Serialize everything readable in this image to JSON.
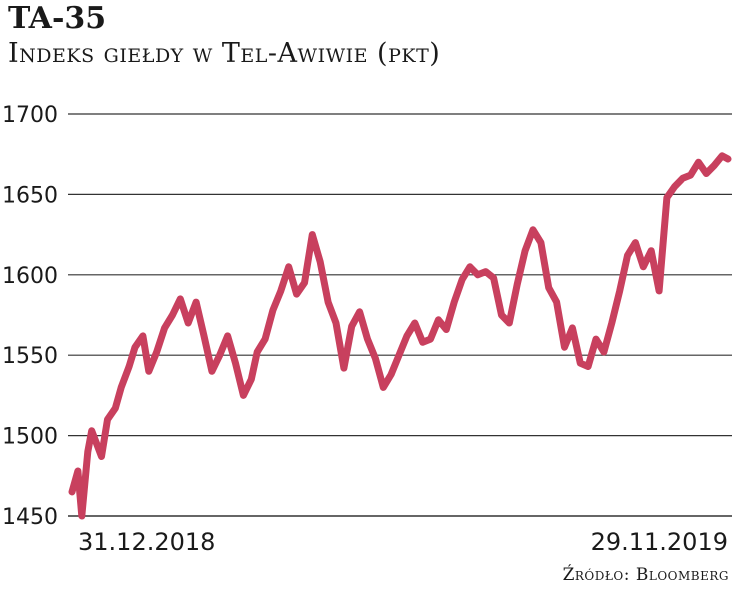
{
  "header": {
    "title": "TA-35",
    "subtitle": "Indeks giełdy w Tel-Awiwie (pkt)"
  },
  "footer": {
    "source": "Źródło: Bloomberg"
  },
  "colors": {
    "line": "#c8405e",
    "grid": "#333333",
    "text": "#1a1a1a"
  },
  "chart_data": {
    "type": "line",
    "title": "TA-35",
    "subtitle": "Indeks giełdy w Tel-Awiwie (pkt)",
    "xlabel": "",
    "ylabel": "",
    "ylim": [
      1450,
      1700
    ],
    "yticks": [
      1450,
      1500,
      1550,
      1600,
      1650,
      1700
    ],
    "xtick_labels": [
      "31.12.2018",
      "29.11.2019"
    ],
    "grid": "horizontal",
    "x_range": [
      "2018-12-31",
      "2019-11-29"
    ],
    "series": [
      {
        "name": "",
        "x": [
          "2018-12-31",
          "2019-01-03",
          "2019-01-05",
          "2019-01-08",
          "2019-01-10",
          "2019-01-15",
          "2019-01-18",
          "2019-01-22",
          "2019-01-25",
          "2019-01-29",
          "2019-02-01",
          "2019-02-05",
          "2019-02-08",
          "2019-02-12",
          "2019-02-16",
          "2019-02-20",
          "2019-02-24",
          "2019-02-28",
          "2019-03-04",
          "2019-03-08",
          "2019-03-12",
          "2019-03-16",
          "2019-03-20",
          "2019-03-24",
          "2019-03-28",
          "2019-04-01",
          "2019-04-04",
          "2019-04-08",
          "2019-04-12",
          "2019-04-16",
          "2019-04-20",
          "2019-04-24",
          "2019-04-28",
          "2019-05-02",
          "2019-05-06",
          "2019-05-10",
          "2019-05-14",
          "2019-05-18",
          "2019-05-22",
          "2019-05-26",
          "2019-05-30",
          "2019-06-03",
          "2019-06-07",
          "2019-06-11",
          "2019-06-15",
          "2019-06-19",
          "2019-06-23",
          "2019-06-27",
          "2019-07-01",
          "2019-07-05",
          "2019-07-09",
          "2019-07-13",
          "2019-07-17",
          "2019-07-21",
          "2019-07-25",
          "2019-07-29",
          "2019-08-02",
          "2019-08-06",
          "2019-08-10",
          "2019-08-14",
          "2019-08-18",
          "2019-08-22",
          "2019-08-26",
          "2019-08-30",
          "2019-09-03",
          "2019-09-07",
          "2019-09-11",
          "2019-09-15",
          "2019-09-19",
          "2019-09-23",
          "2019-09-27",
          "2019-10-01",
          "2019-10-05",
          "2019-10-09",
          "2019-10-13",
          "2019-10-17",
          "2019-10-21",
          "2019-10-25",
          "2019-10-29",
          "2019-11-02",
          "2019-11-06",
          "2019-11-10",
          "2019-11-14",
          "2019-11-18",
          "2019-11-22",
          "2019-11-26",
          "2019-11-29"
        ],
        "y": [
          1465,
          1478,
          1450,
          1490,
          1503,
          1487,
          1510,
          1517,
          1530,
          1543,
          1555,
          1562,
          1540,
          1552,
          1567,
          1575,
          1585,
          1570,
          1583,
          1562,
          1540,
          1550,
          1562,
          1545,
          1525,
          1535,
          1552,
          1560,
          1578,
          1590,
          1605,
          1588,
          1595,
          1625,
          1608,
          1583,
          1570,
          1542,
          1568,
          1577,
          1560,
          1548,
          1530,
          1538,
          1550,
          1562,
          1570,
          1558,
          1560,
          1572,
          1566,
          1583,
          1597,
          1605,
          1600,
          1602,
          1598,
          1575,
          1570,
          1594,
          1615,
          1628,
          1620,
          1592,
          1583,
          1555,
          1567,
          1545,
          1543,
          1560,
          1552,
          1570,
          1590,
          1612,
          1620,
          1605,
          1615,
          1590,
          1648,
          1655,
          1660,
          1662,
          1670,
          1663,
          1668,
          1674,
          1672
        ]
      }
    ]
  }
}
